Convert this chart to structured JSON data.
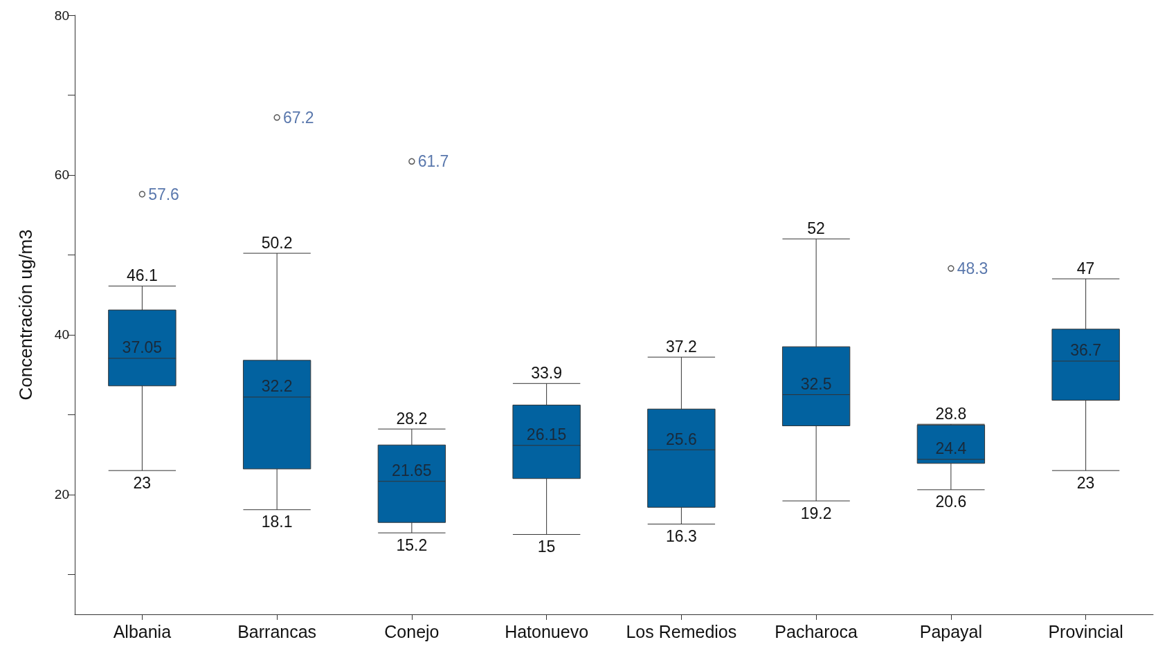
{
  "chart_data": {
    "type": "box",
    "ylabel": "Concentración ug/m3",
    "categories": [
      "Albania",
      "Barrancas",
      "Conejo",
      "Hatonuevo",
      "Los Remedios",
      "Pacharoca",
      "Papayal",
      "Provincial"
    ],
    "color": "#0262a0",
    "boxes": [
      {
        "low": 23,
        "q1": 33.6,
        "median": 37.05,
        "q3": 43.1,
        "high": 46.1
      },
      {
        "low": 18.1,
        "q1": 23.2,
        "median": 32.2,
        "q3": 36.8,
        "high": 50.2
      },
      {
        "low": 15.2,
        "q1": 16.5,
        "median": 21.65,
        "q3": 26.2,
        "high": 28.2
      },
      {
        "low": 15,
        "q1": 22,
        "median": 26.15,
        "q3": 31.2,
        "high": 33.9
      },
      {
        "low": 16.3,
        "q1": 18.4,
        "median": 25.6,
        "q3": 30.7,
        "high": 37.2
      },
      {
        "low": 19.2,
        "q1": 28.6,
        "median": 32.5,
        "q3": 38.5,
        "high": 52
      },
      {
        "low": 20.6,
        "q1": 23.9,
        "median": 24.4,
        "q3": 28.7,
        "high": 28.8
      },
      {
        "low": 23,
        "q1": 31.8,
        "median": 36.7,
        "q3": 40.7,
        "high": 47
      }
    ],
    "series": [
      {
        "type": "scatter",
        "color": "#333333",
        "x": [
          "Albania",
          "Barrancas",
          "Conejo",
          "Papayal"
        ],
        "values": [
          57.6,
          67.2,
          61.7,
          48.3
        ]
      }
    ],
    "marker": "circle",
    "annotations": [
      {
        "text": "46.1",
        "x": "Albania",
        "y": 46.1
      },
      {
        "text": "37.05",
        "x": "Albania",
        "y": 37.05
      },
      {
        "text": "23",
        "x": "Albania",
        "y": 23
      },
      {
        "text": "50.2",
        "x": "Barrancas",
        "y": 50.2
      },
      {
        "text": "32.2",
        "x": "Barrancas",
        "y": 32.2
      },
      {
        "text": "18.1",
        "x": "Barrancas",
        "y": 18.1
      },
      {
        "text": "28.2",
        "x": "Conejo",
        "y": 28.2
      },
      {
        "text": "21.65",
        "x": "Conejo",
        "y": 21.65
      },
      {
        "text": "15.2",
        "x": "Conejo",
        "y": 15.2
      },
      {
        "text": "33.9",
        "x": "Hatonuevo",
        "y": 33.9
      },
      {
        "text": "26.15",
        "x": "Hatonuevo",
        "y": 26.15
      },
      {
        "text": "15",
        "x": "Hatonuevo",
        "y": 15
      },
      {
        "text": "37.2",
        "x": "Los Remedios",
        "y": 37.2
      },
      {
        "text": "25.6",
        "x": "Los Remedios",
        "y": 25.6
      },
      {
        "text": "16.3",
        "x": "Los Remedios",
        "y": 16.3
      },
      {
        "text": "52",
        "x": "Pacharoca",
        "y": 52
      },
      {
        "text": "32.5",
        "x": "Pacharoca",
        "y": 32.5
      },
      {
        "text": "19.2",
        "x": "Pacharoca",
        "y": 19.2
      },
      {
        "text": "28.8",
        "x": "Papayal",
        "y": 28.8
      },
      {
        "text": "24.4",
        "x": "Papayal",
        "y": 24.4
      },
      {
        "text": "20.6",
        "x": "Papayal",
        "y": 20.6
      },
      {
        "text": "47",
        "x": "Provincial",
        "y": 47
      },
      {
        "text": "36.7",
        "x": "Provincial",
        "y": 36.7
      },
      {
        "text": "23",
        "x": "Provincial",
        "y": 23
      }
    ],
    "ylim": [
      5,
      80
    ],
    "yticks": [
      {
        "value": 10,
        "label": null
      },
      20,
      {
        "value": 30,
        "label": null
      },
      40,
      {
        "value": 50,
        "label": null
      },
      60,
      {
        "value": 70,
        "label": null
      },
      80
    ],
    "data_labels": true,
    "grid": false
  }
}
